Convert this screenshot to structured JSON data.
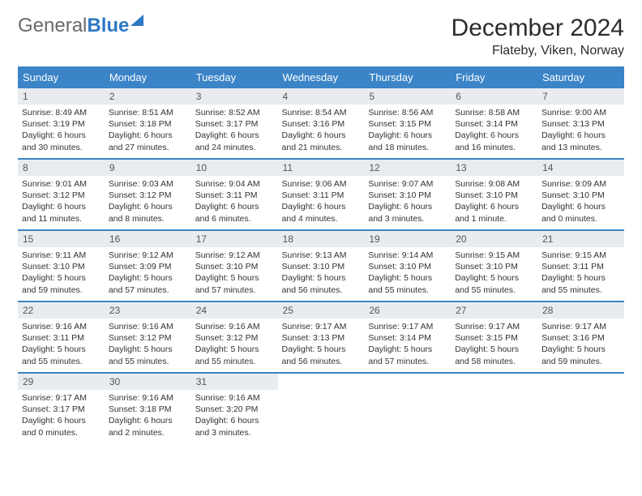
{
  "logo": {
    "part1": "General",
    "part2": "Blue"
  },
  "title": "December 2024",
  "subtitle": "Flateby, Viken, Norway",
  "header_bg": "#3b84c7",
  "header_text_color": "#ffffff",
  "daynum_bg": "#e9ecef",
  "border_color": "#3b84c7",
  "page_bg": "#ffffff",
  "body_text_color": "#333333",
  "font_family": "Arial, Helvetica, sans-serif",
  "title_fontsize": 30,
  "subtitle_fontsize": 16,
  "dayheader_fontsize": 13,
  "daynum_fontsize": 12,
  "body_fontsize": 10.5,
  "columns": [
    "Sunday",
    "Monday",
    "Tuesday",
    "Wednesday",
    "Thursday",
    "Friday",
    "Saturday"
  ],
  "weeks": [
    [
      {
        "n": "1",
        "sunrise": "8:49 AM",
        "sunset": "3:19 PM",
        "daylight": "6 hours and 30 minutes."
      },
      {
        "n": "2",
        "sunrise": "8:51 AM",
        "sunset": "3:18 PM",
        "daylight": "6 hours and 27 minutes."
      },
      {
        "n": "3",
        "sunrise": "8:52 AM",
        "sunset": "3:17 PM",
        "daylight": "6 hours and 24 minutes."
      },
      {
        "n": "4",
        "sunrise": "8:54 AM",
        "sunset": "3:16 PM",
        "daylight": "6 hours and 21 minutes."
      },
      {
        "n": "5",
        "sunrise": "8:56 AM",
        "sunset": "3:15 PM",
        "daylight": "6 hours and 18 minutes."
      },
      {
        "n": "6",
        "sunrise": "8:58 AM",
        "sunset": "3:14 PM",
        "daylight": "6 hours and 16 minutes."
      },
      {
        "n": "7",
        "sunrise": "9:00 AM",
        "sunset": "3:13 PM",
        "daylight": "6 hours and 13 minutes."
      }
    ],
    [
      {
        "n": "8",
        "sunrise": "9:01 AM",
        "sunset": "3:12 PM",
        "daylight": "6 hours and 11 minutes."
      },
      {
        "n": "9",
        "sunrise": "9:03 AM",
        "sunset": "3:12 PM",
        "daylight": "6 hours and 8 minutes."
      },
      {
        "n": "10",
        "sunrise": "9:04 AM",
        "sunset": "3:11 PM",
        "daylight": "6 hours and 6 minutes."
      },
      {
        "n": "11",
        "sunrise": "9:06 AM",
        "sunset": "3:11 PM",
        "daylight": "6 hours and 4 minutes."
      },
      {
        "n": "12",
        "sunrise": "9:07 AM",
        "sunset": "3:10 PM",
        "daylight": "6 hours and 3 minutes."
      },
      {
        "n": "13",
        "sunrise": "9:08 AM",
        "sunset": "3:10 PM",
        "daylight": "6 hours and 1 minute."
      },
      {
        "n": "14",
        "sunrise": "9:09 AM",
        "sunset": "3:10 PM",
        "daylight": "6 hours and 0 minutes."
      }
    ],
    [
      {
        "n": "15",
        "sunrise": "9:11 AM",
        "sunset": "3:10 PM",
        "daylight": "5 hours and 59 minutes."
      },
      {
        "n": "16",
        "sunrise": "9:12 AM",
        "sunset": "3:09 PM",
        "daylight": "5 hours and 57 minutes."
      },
      {
        "n": "17",
        "sunrise": "9:12 AM",
        "sunset": "3:10 PM",
        "daylight": "5 hours and 57 minutes."
      },
      {
        "n": "18",
        "sunrise": "9:13 AM",
        "sunset": "3:10 PM",
        "daylight": "5 hours and 56 minutes."
      },
      {
        "n": "19",
        "sunrise": "9:14 AM",
        "sunset": "3:10 PM",
        "daylight": "5 hours and 55 minutes."
      },
      {
        "n": "20",
        "sunrise": "9:15 AM",
        "sunset": "3:10 PM",
        "daylight": "5 hours and 55 minutes."
      },
      {
        "n": "21",
        "sunrise": "9:15 AM",
        "sunset": "3:11 PM",
        "daylight": "5 hours and 55 minutes."
      }
    ],
    [
      {
        "n": "22",
        "sunrise": "9:16 AM",
        "sunset": "3:11 PM",
        "daylight": "5 hours and 55 minutes."
      },
      {
        "n": "23",
        "sunrise": "9:16 AM",
        "sunset": "3:12 PM",
        "daylight": "5 hours and 55 minutes."
      },
      {
        "n": "24",
        "sunrise": "9:16 AM",
        "sunset": "3:12 PM",
        "daylight": "5 hours and 55 minutes."
      },
      {
        "n": "25",
        "sunrise": "9:17 AM",
        "sunset": "3:13 PM",
        "daylight": "5 hours and 56 minutes."
      },
      {
        "n": "26",
        "sunrise": "9:17 AM",
        "sunset": "3:14 PM",
        "daylight": "5 hours and 57 minutes."
      },
      {
        "n": "27",
        "sunrise": "9:17 AM",
        "sunset": "3:15 PM",
        "daylight": "5 hours and 58 minutes."
      },
      {
        "n": "28",
        "sunrise": "9:17 AM",
        "sunset": "3:16 PM",
        "daylight": "5 hours and 59 minutes."
      }
    ],
    [
      {
        "n": "29",
        "sunrise": "9:17 AM",
        "sunset": "3:17 PM",
        "daylight": "6 hours and 0 minutes."
      },
      {
        "n": "30",
        "sunrise": "9:16 AM",
        "sunset": "3:18 PM",
        "daylight": "6 hours and 2 minutes."
      },
      {
        "n": "31",
        "sunrise": "9:16 AM",
        "sunset": "3:20 PM",
        "daylight": "6 hours and 3 minutes."
      },
      null,
      null,
      null,
      null
    ]
  ]
}
